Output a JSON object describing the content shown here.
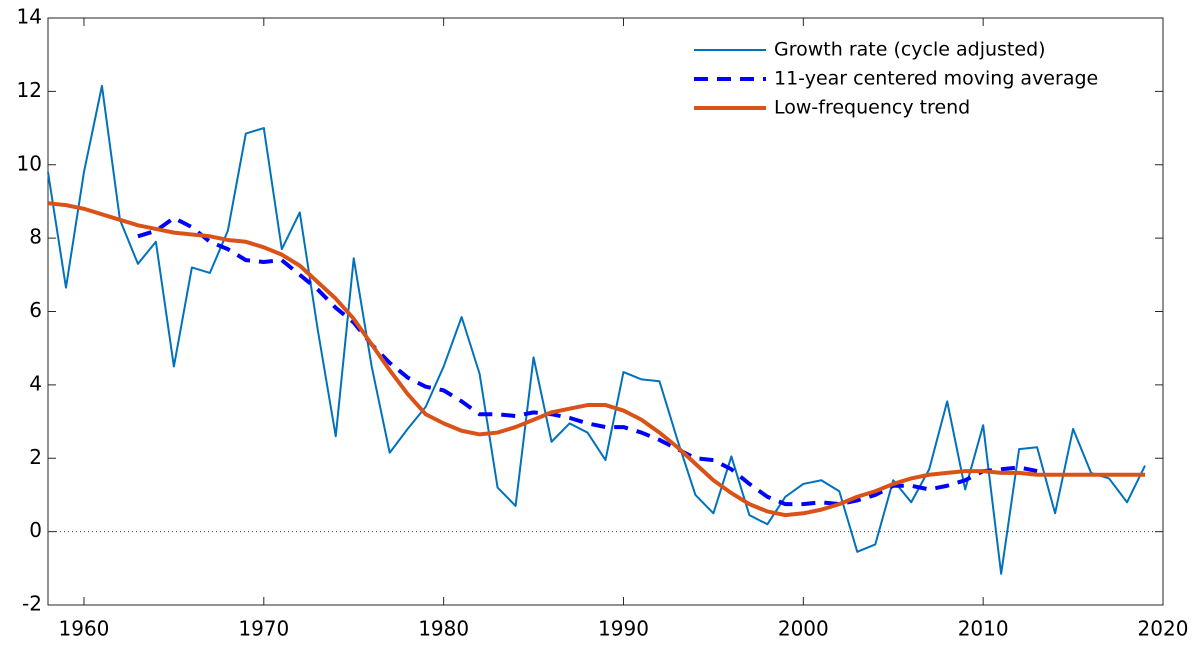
{
  "chart_data": {
    "type": "line",
    "x": [
      1958,
      1959,
      1960,
      1961,
      1962,
      1963,
      1964,
      1965,
      1966,
      1967,
      1968,
      1969,
      1970,
      1971,
      1972,
      1973,
      1974,
      1975,
      1976,
      1977,
      1978,
      1979,
      1980,
      1981,
      1982,
      1983,
      1984,
      1985,
      1986,
      1987,
      1988,
      1989,
      1990,
      1991,
      1992,
      1993,
      1994,
      1995,
      1996,
      1997,
      1998,
      1999,
      2000,
      2001,
      2002,
      2003,
      2004,
      2005,
      2006,
      2007,
      2008,
      2009,
      2010,
      2011,
      2012,
      2013,
      2014,
      2015,
      2016,
      2017,
      2018,
      2019
    ],
    "series": [
      {
        "name": "Growth rate (cycle adjusted)",
        "color": "#0072bd",
        "width": 2,
        "dash": false,
        "values": [
          9.8,
          6.65,
          9.8,
          12.15,
          8.5,
          7.3,
          7.9,
          4.5,
          7.2,
          7.05,
          8.2,
          10.85,
          11.0,
          7.7,
          8.7,
          5.5,
          2.6,
          7.45,
          4.5,
          2.15,
          2.8,
          3.4,
          4.5,
          5.85,
          4.3,
          1.2,
          0.7,
          4.75,
          2.45,
          2.95,
          2.7,
          1.95,
          4.35,
          4.15,
          4.1,
          2.5,
          1.0,
          0.5,
          2.05,
          0.45,
          0.2,
          0.95,
          1.3,
          1.4,
          1.1,
          -0.55,
          -0.35,
          1.4,
          0.8,
          1.7,
          3.55,
          1.15,
          2.9,
          -1.15,
          2.25,
          2.3,
          0.5,
          2.8,
          1.6,
          1.45,
          0.8,
          1.8
        ]
      },
      {
        "name": "11-year centered moving average",
        "color": "#0000ff",
        "width": 4,
        "dash": true,
        "values": [
          null,
          null,
          null,
          null,
          null,
          8.05,
          8.2,
          8.55,
          8.3,
          7.9,
          7.7,
          7.4,
          7.35,
          7.4,
          7.0,
          6.6,
          6.1,
          5.7,
          5.1,
          4.6,
          4.2,
          3.95,
          3.85,
          3.55,
          3.2,
          3.2,
          3.15,
          3.25,
          3.2,
          3.1,
          2.95,
          2.85,
          2.85,
          2.7,
          2.5,
          2.25,
          2.0,
          1.95,
          1.7,
          1.3,
          0.95,
          0.75,
          0.75,
          0.8,
          0.75,
          0.85,
          1.0,
          1.25,
          1.25,
          1.15,
          1.25,
          1.4,
          1.65,
          1.7,
          1.75,
          1.65,
          null,
          null,
          null,
          null,
          null,
          null
        ]
      },
      {
        "name": "Low-frequency trend",
        "color": "#d95319",
        "width": 4,
        "dash": false,
        "values": [
          8.95,
          8.9,
          8.8,
          8.65,
          8.5,
          8.35,
          8.25,
          8.15,
          8.1,
          8.05,
          7.95,
          7.9,
          7.75,
          7.55,
          7.25,
          6.8,
          6.35,
          5.8,
          5.1,
          4.4,
          3.75,
          3.2,
          2.95,
          2.75,
          2.65,
          2.7,
          2.85,
          3.05,
          3.25,
          3.35,
          3.45,
          3.45,
          3.3,
          3.05,
          2.7,
          2.3,
          1.85,
          1.4,
          1.05,
          0.75,
          0.55,
          0.45,
          0.5,
          0.6,
          0.75,
          0.95,
          1.1,
          1.3,
          1.45,
          1.55,
          1.6,
          1.65,
          1.65,
          1.6,
          1.6,
          1.55,
          1.55,
          1.55,
          1.55,
          1.55,
          1.55,
          1.55
        ]
      }
    ],
    "xlim": [
      1958,
      2020
    ],
    "xticks": [
      1960,
      1970,
      1980,
      1990,
      2000,
      2010,
      2020
    ],
    "ylim": [
      -2,
      14
    ],
    "yticks": [
      -2,
      0,
      2,
      4,
      6,
      8,
      10,
      12,
      14
    ],
    "zero_line": true,
    "legend": "top-right"
  }
}
